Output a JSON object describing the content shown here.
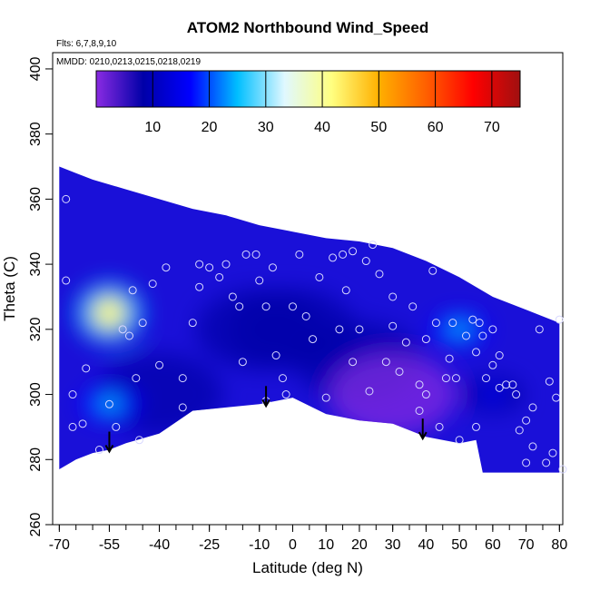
{
  "chart_data": {
    "type": "heatmap",
    "title": "ATOM2 Northbound Wind_Speed",
    "flights_note": "Flts: 6,7,8,9,10",
    "dates_note": "MMDD: 0210,0213,0215,0218,0219",
    "xlabel": "Latitude (deg N)",
    "ylabel": "Theta (C)",
    "xlim": [
      -72,
      81
    ],
    "ylim": [
      260,
      405
    ],
    "x_ticks": [
      -70,
      -55,
      -40,
      -25,
      -10,
      0,
      10,
      20,
      30,
      40,
      50,
      60,
      70,
      80
    ],
    "x_tick_labels": [
      "-70",
      "-55",
      "-40",
      "-25",
      "-10",
      "0",
      "10",
      "20",
      "30",
      "40",
      "50",
      "60",
      "70",
      "80"
    ],
    "y_ticks": [
      260,
      280,
      300,
      320,
      340,
      360,
      380,
      400
    ],
    "y_tick_labels": [
      "260",
      "280",
      "300",
      "320",
      "340",
      "360",
      "380",
      "400"
    ],
    "colorbar": {
      "min": 0,
      "max": 75,
      "ticks": [
        10,
        20,
        30,
        40,
        50,
        60,
        70
      ],
      "tick_labels": [
        "10",
        "20",
        "30",
        "40",
        "50",
        "60",
        "70"
      ],
      "colors": [
        "#8a2be2",
        "#0000a8",
        "#0000ff",
        "#00bfff",
        "#e0f8ff",
        "#ffff80",
        "#ffb000",
        "#ff6000",
        "#ff0000",
        "#a01010"
      ]
    },
    "top_boundary": [
      [
        -70,
        370
      ],
      [
        -65,
        368
      ],
      [
        -60,
        366
      ],
      [
        -50,
        363
      ],
      [
        -40,
        360
      ],
      [
        -30,
        357
      ],
      [
        -20,
        355
      ],
      [
        -10,
        352
      ],
      [
        0,
        350
      ],
      [
        10,
        348
      ],
      [
        20,
        347
      ],
      [
        30,
        345
      ],
      [
        40,
        341
      ],
      [
        50,
        336
      ],
      [
        60,
        330
      ],
      [
        70,
        326
      ],
      [
        80,
        322
      ]
    ],
    "bottom_boundary": [
      [
        -70,
        277
      ],
      [
        -65,
        280
      ],
      [
        -60,
        282
      ],
      [
        -55,
        283
      ],
      [
        -50,
        285
      ],
      [
        -40,
        288
      ],
      [
        -30,
        295
      ],
      [
        -20,
        296
      ],
      [
        -10,
        297
      ],
      [
        -5,
        298
      ],
      [
        0,
        299
      ],
      [
        10,
        294
      ],
      [
        20,
        292
      ],
      [
        30,
        291
      ],
      [
        40,
        287
      ],
      [
        50,
        285
      ],
      [
        55,
        286
      ],
      [
        57,
        276
      ],
      [
        65,
        276
      ],
      [
        75,
        276
      ],
      [
        80,
        276
      ]
    ],
    "hotspots": [
      {
        "x": -55,
        "y": 325,
        "value": 45
      },
      {
        "x": -55,
        "y": 297,
        "value": 25
      },
      {
        "x": 50,
        "y": 320,
        "value": 22
      },
      {
        "x": 60,
        "y": 300,
        "value": 20
      }
    ],
    "arrows_lat": [
      -55,
      -8,
      39
    ],
    "samples": [
      [
        -68,
        360
      ],
      [
        -68,
        335
      ],
      [
        -66,
        300
      ],
      [
        -66,
        290
      ],
      [
        -63,
        291
      ],
      [
        -62,
        308
      ],
      [
        -58,
        283
      ],
      [
        -55,
        297
      ],
      [
        -53,
        290
      ],
      [
        -51,
        320
      ],
      [
        -49,
        318
      ],
      [
        -48,
        332
      ],
      [
        -47,
        305
      ],
      [
        -45,
        322
      ],
      [
        -46,
        286
      ],
      [
        -42,
        334
      ],
      [
        -40,
        309
      ],
      [
        -38,
        339
      ],
      [
        -33,
        296
      ],
      [
        -33,
        305
      ],
      [
        -30,
        322
      ],
      [
        -28,
        333
      ],
      [
        -28,
        340
      ],
      [
        -25,
        339
      ],
      [
        -22,
        336
      ],
      [
        -20,
        340
      ],
      [
        -18,
        330
      ],
      [
        -16,
        327
      ],
      [
        -15,
        310
      ],
      [
        -14,
        343
      ],
      [
        -11,
        343
      ],
      [
        -10,
        335
      ],
      [
        -8,
        327
      ],
      [
        -8,
        298
      ],
      [
        -6,
        339
      ],
      [
        -5,
        312
      ],
      [
        -3,
        305
      ],
      [
        -2,
        300
      ],
      [
        0,
        327
      ],
      [
        2,
        343
      ],
      [
        4,
        324
      ],
      [
        6,
        317
      ],
      [
        8,
        336
      ],
      [
        10,
        299
      ],
      [
        12,
        342
      ],
      [
        14,
        320
      ],
      [
        15,
        343
      ],
      [
        16,
        332
      ],
      [
        18,
        344
      ],
      [
        18,
        310
      ],
      [
        20,
        320
      ],
      [
        22,
        341
      ],
      [
        23,
        301
      ],
      [
        24,
        346
      ],
      [
        26,
        337
      ],
      [
        28,
        310
      ],
      [
        30,
        330
      ],
      [
        30,
        321
      ],
      [
        32,
        307
      ],
      [
        34,
        316
      ],
      [
        36,
        327
      ],
      [
        38,
        303
      ],
      [
        38,
        295
      ],
      [
        40,
        300
      ],
      [
        40,
        317
      ],
      [
        42,
        338
      ],
      [
        43,
        322
      ],
      [
        44,
        290
      ],
      [
        46,
        305
      ],
      [
        47,
        311
      ],
      [
        48,
        322
      ],
      [
        49,
        305
      ],
      [
        50,
        286
      ],
      [
        52,
        318
      ],
      [
        54,
        323
      ],
      [
        55,
        313
      ],
      [
        55,
        290
      ],
      [
        56,
        322
      ],
      [
        57,
        318
      ],
      [
        58,
        305
      ],
      [
        60,
        320
      ],
      [
        60,
        309
      ],
      [
        62,
        312
      ],
      [
        62,
        302
      ],
      [
        64,
        303
      ],
      [
        66,
        303
      ],
      [
        67,
        300
      ],
      [
        68,
        289
      ],
      [
        70,
        279
      ],
      [
        70,
        292
      ],
      [
        72,
        296
      ],
      [
        72,
        284
      ],
      [
        74,
        320
      ],
      [
        76,
        279
      ],
      [
        77,
        304
      ],
      [
        78,
        282
      ],
      [
        79,
        299
      ],
      [
        80,
        323
      ],
      [
        81,
        277
      ]
    ]
  }
}
